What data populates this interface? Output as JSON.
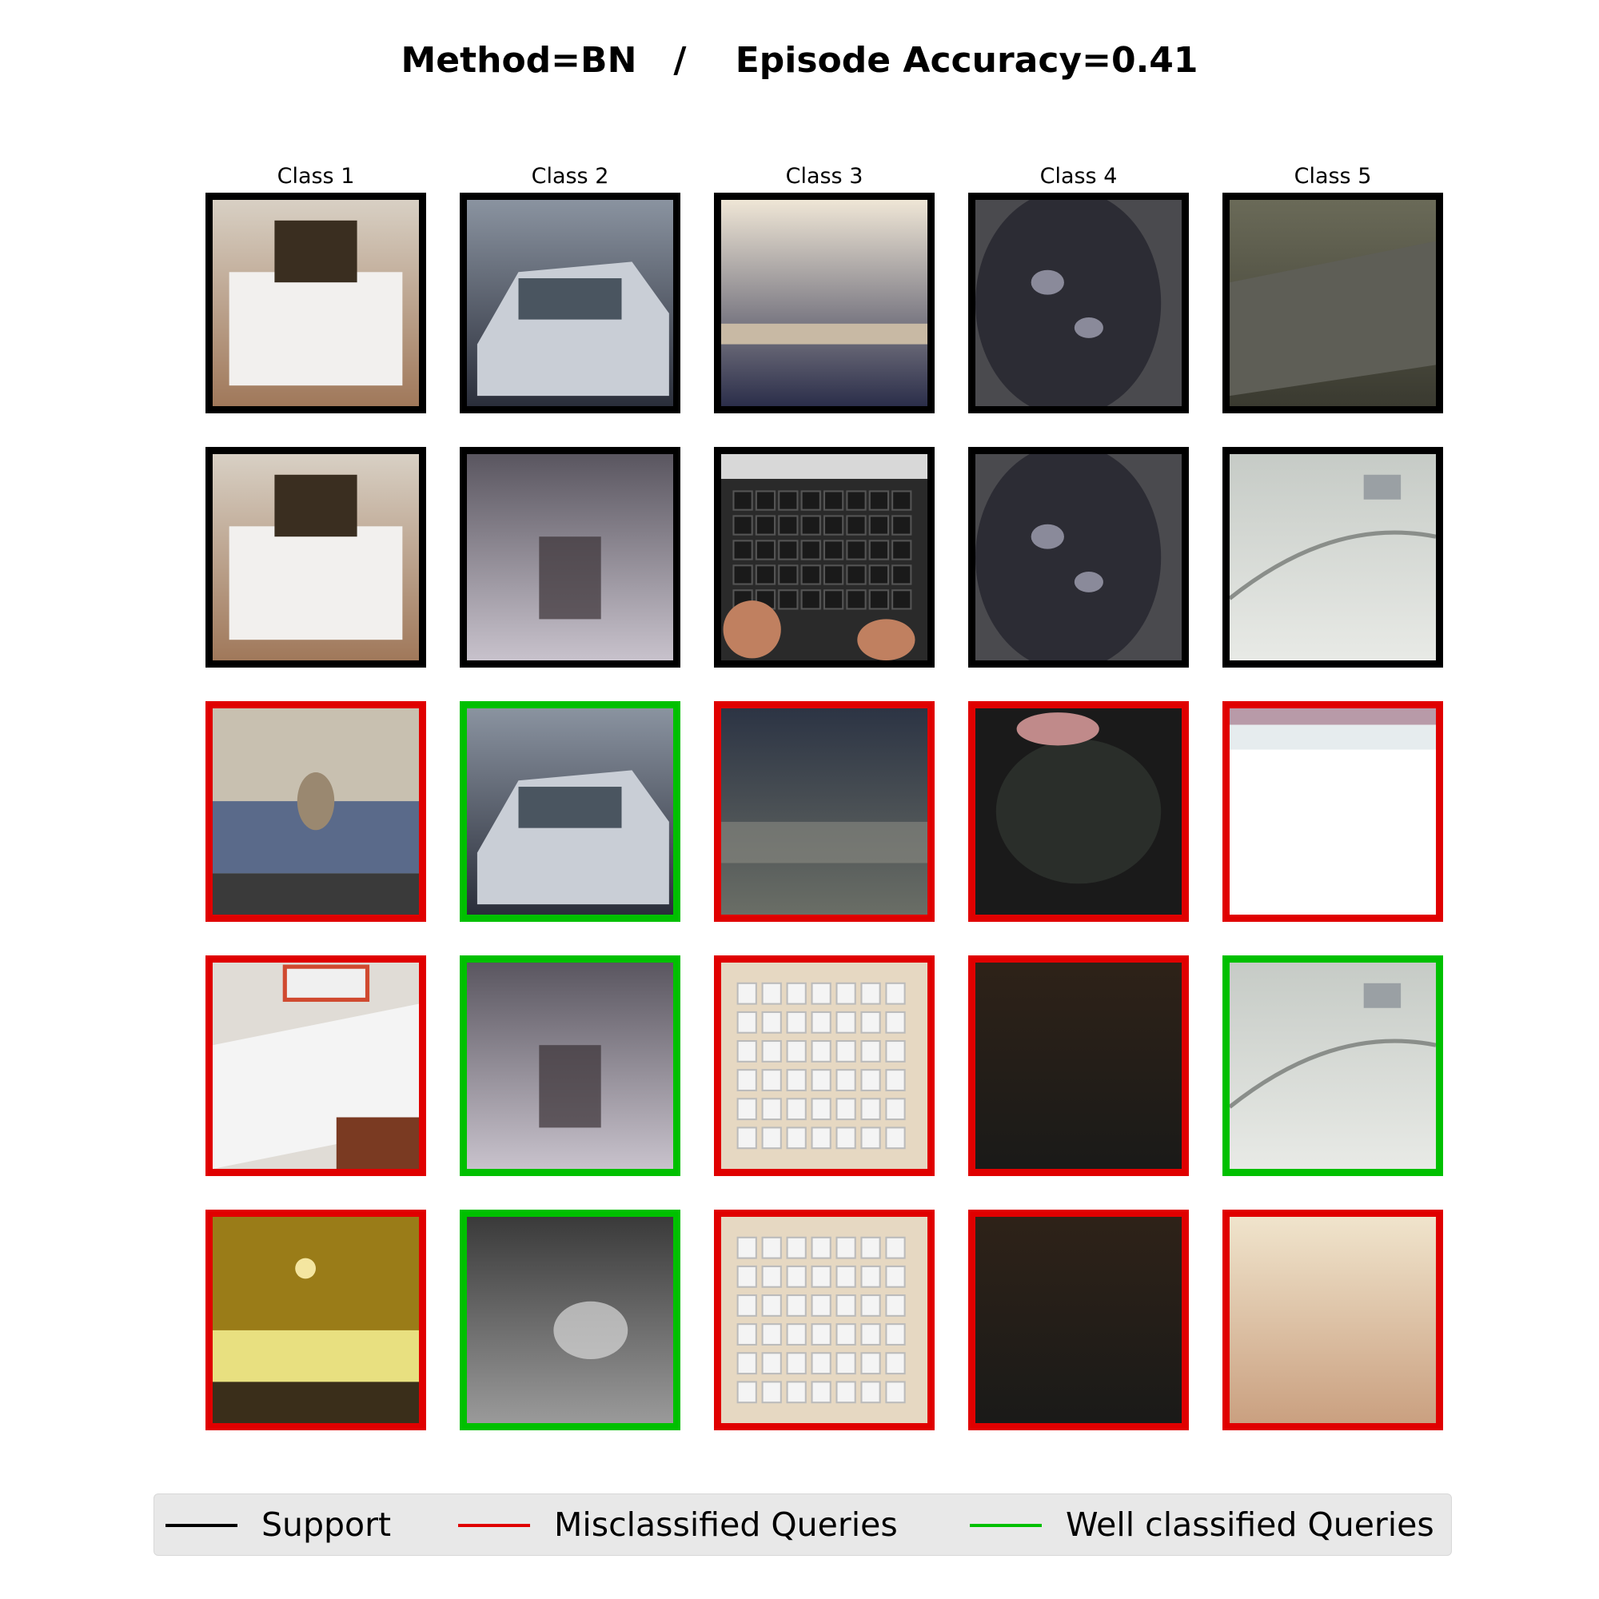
{
  "figure": {
    "title": "Method=BN   /    Episode Accuracy=0.41"
  },
  "classes": [
    "Class 1",
    "Class 2",
    "Class 3",
    "Class 4",
    "Class 5"
  ],
  "colors": {
    "support": "#000000",
    "misclassified": "#e00000",
    "well_classified": "#00c000"
  },
  "rows": [
    {
      "kind": [
        "support",
        "support",
        "support",
        "support",
        "support"
      ],
      "subjects": [
        "bed",
        "car",
        "bed-edge",
        "mouse",
        "sink-edge"
      ]
    },
    {
      "kind": [
        "support",
        "support",
        "support",
        "support",
        "support"
      ],
      "subjects": [
        "bed",
        "blurred car",
        "keyboard",
        "mouse",
        "sink"
      ]
    },
    {
      "kind": [
        "misclassified",
        "well_classified",
        "misclassified",
        "misclassified",
        "misclassified"
      ],
      "subjects": [
        "bed with dog",
        "car",
        "blurred scene",
        "dark mouse",
        "white surface"
      ]
    },
    {
      "kind": [
        "misclassified",
        "well_classified",
        "misclassified",
        "misclassified",
        "well_classified"
      ],
      "subjects": [
        "unmade bed",
        "blurred car",
        "white keyboard",
        "dark blur",
        "sink"
      ]
    },
    {
      "kind": [
        "misclassified",
        "well_classified",
        "misclassified",
        "misclassified",
        "misclassified"
      ],
      "subjects": [
        "hotel bed",
        "grey blur",
        "white keyboard",
        "dark blur",
        "beige blur"
      ]
    }
  ],
  "legend": {
    "support": "Support",
    "misclassified": "Misclassified Queries",
    "well_classified": "Well classified Queries"
  }
}
